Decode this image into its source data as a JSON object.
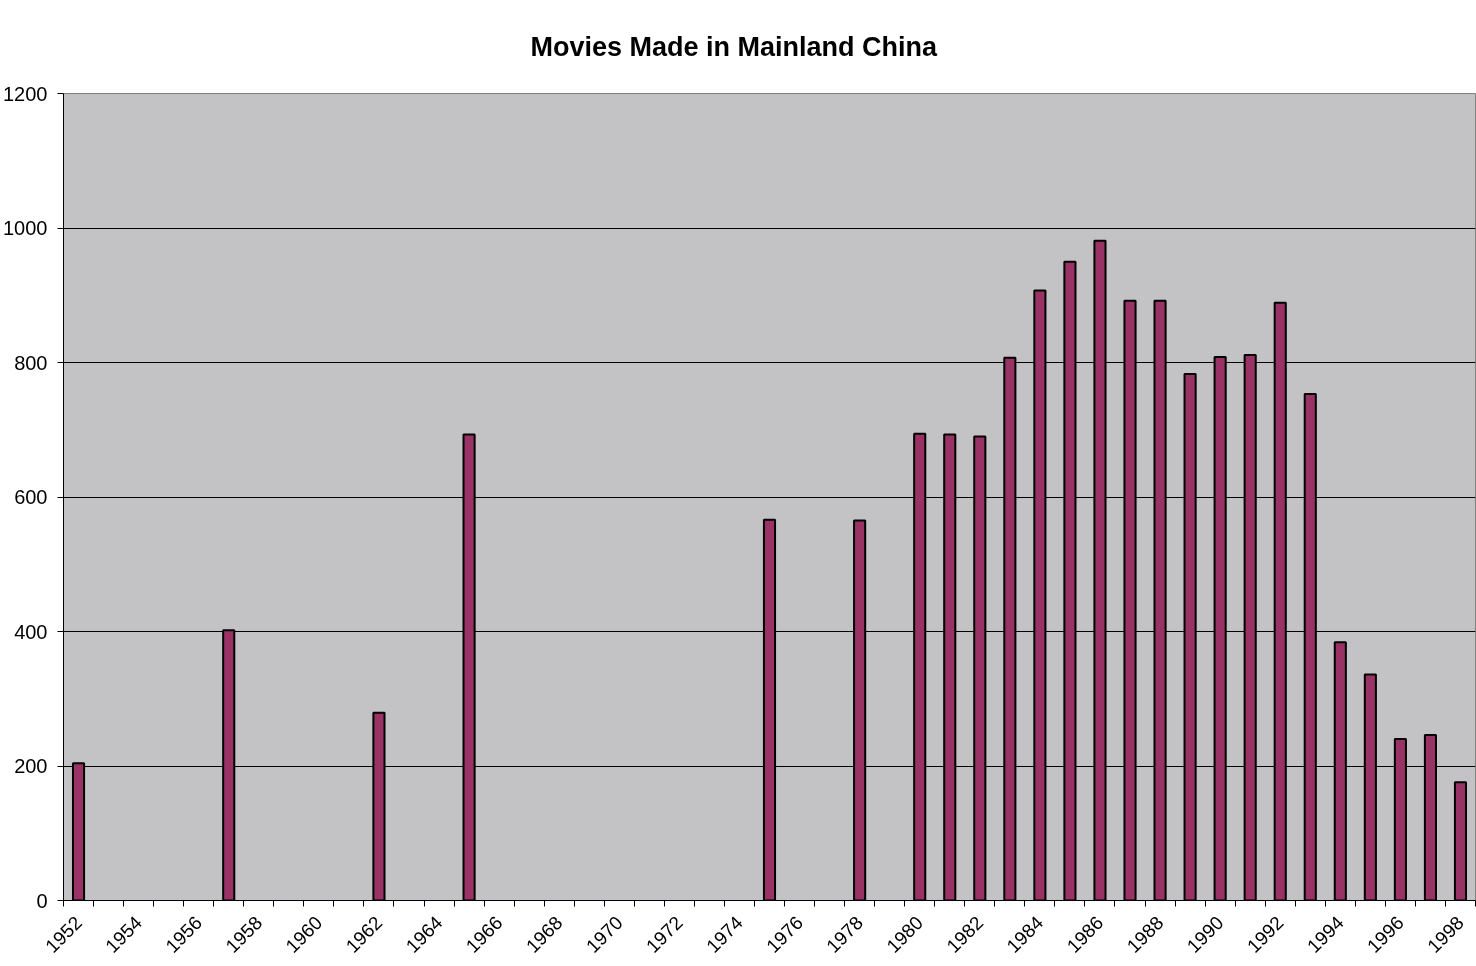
{
  "chart_data": {
    "type": "bar",
    "title": "Movies Made in Mainland China",
    "categories": [
      "1952",
      null,
      "1954",
      null,
      "1956",
      null,
      "1958",
      null,
      "1960",
      null,
      "1962",
      null,
      "1964",
      null,
      "1966",
      null,
      "1968",
      null,
      "1970",
      null,
      "1972",
      null,
      "1974",
      null,
      "1976",
      null,
      "1978",
      null,
      "1980",
      null,
      "1982",
      null,
      "1984",
      null,
      "1986",
      null,
      "1988",
      null,
      "1990",
      null,
      "1992",
      null,
      "1994",
      null,
      "1996",
      null,
      "1998"
    ],
    "values": [
      204,
      null,
      null,
      null,
      null,
      402,
      null,
      null,
      null,
      null,
      279,
      null,
      null,
      693,
      null,
      null,
      null,
      null,
      null,
      null,
      null,
      null,
      null,
      566,
      null,
      null,
      565,
      null,
      694,
      693,
      690,
      807,
      907,
      950,
      981,
      892,
      892,
      783,
      808,
      811,
      889,
      753,
      384,
      336,
      240,
      246,
      176
    ],
    "color": "#993366",
    "ylim": [
      0,
      1200
    ],
    "yticks": [
      0,
      200,
      400,
      600,
      800,
      1000,
      1200
    ],
    "grid": "y"
  }
}
